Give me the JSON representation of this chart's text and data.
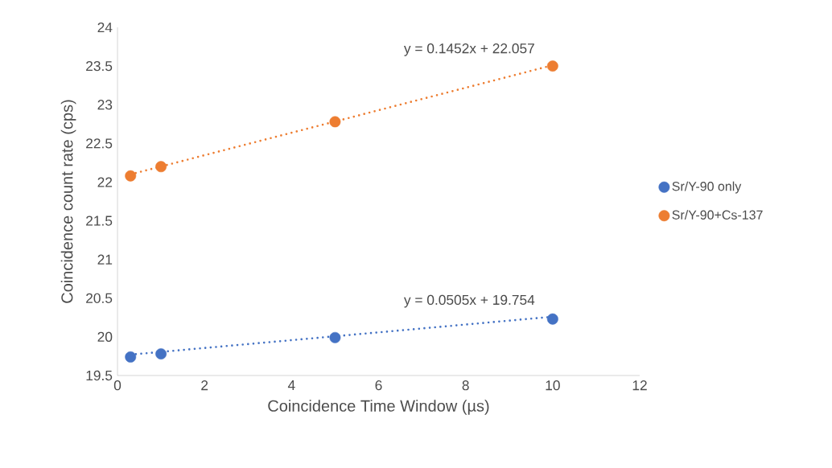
{
  "chart_data": {
    "type": "scatter",
    "xlabel": "Coincidence Time Window (µs)",
    "ylabel": "Coincidence count rate (cps)",
    "xlim": [
      0,
      12
    ],
    "xticks": [
      0,
      2,
      4,
      6,
      8,
      10,
      12
    ],
    "ylim": [
      19.5,
      24
    ],
    "yticks": [
      19.5,
      20,
      20.5,
      21,
      21.5,
      22,
      22.5,
      23,
      23.5,
      24
    ],
    "grid": false,
    "legend": "right",
    "marker": "circle",
    "series": [
      {
        "name": "Sr/Y-90 only",
        "color": "#4472c4",
        "x": [
          0.3,
          1,
          5,
          10
        ],
        "values": [
          19.74,
          19.78,
          19.99,
          20.23
        ]
      },
      {
        "name": "Sr/Y-90+Cs-137",
        "color": "#ed7d31",
        "x": [
          0.3,
          1,
          5,
          10
        ],
        "values": [
          22.08,
          22.2,
          22.78,
          23.5
        ]
      },
      {
        "type": "line",
        "color": "#4472c4",
        "line_style": "dotted",
        "marker": "none",
        "x": [
          0.3,
          10
        ],
        "values": [
          19.77,
          20.26
        ]
      },
      {
        "type": "line",
        "color": "#ed7d31",
        "line_style": "dotted",
        "marker": "none",
        "x": [
          0.3,
          10
        ],
        "values": [
          22.1,
          23.51
        ]
      }
    ],
    "annotations": [
      "y = 0.0505x + 19.754",
      "y = 0.1452x + 22.057"
    ]
  }
}
